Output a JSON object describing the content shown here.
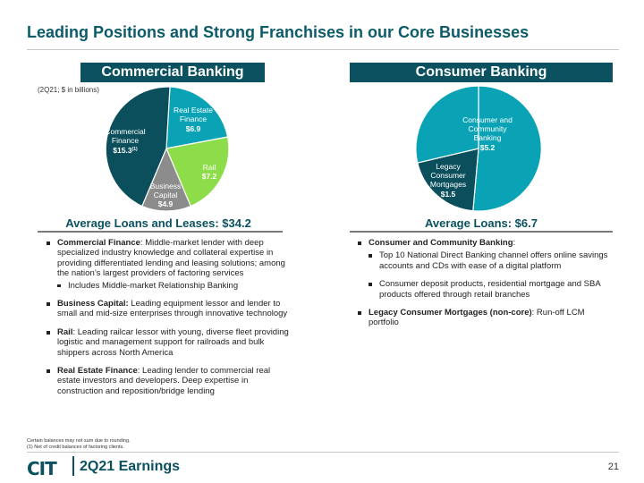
{
  "title": "Leading Positions and Strong Franchises in our Core Businesses",
  "commercial": {
    "header": "Commercial Banking",
    "note": "(2Q21; $ in billions)",
    "pie": [
      {
        "line1": "Commercial",
        "line2": "Finance",
        "value": "$15.3",
        "sup": "(1)",
        "color": "#0b4f5c"
      },
      {
        "line1": "Real Estate",
        "line2": "Finance",
        "value": "$6.9",
        "color": "#0aa3b5"
      },
      {
        "line1": "Rail",
        "line2": "",
        "value": "$7.2",
        "color": "#8ddc4a"
      },
      {
        "line1": "Business",
        "line2": "Capital",
        "value": "$4.9",
        "color": "#8c8c8c"
      }
    ],
    "avg_label": "Average Loans and Leases: $34.2",
    "bullets": [
      {
        "head": "Commercial Finance",
        "text": ": Middle-market lender with deep specialized industry knowledge and collateral expertise in providing differentiated lending and leasing solutions; among the nation’s largest providers of factoring services",
        "sub": "Includes Middle-market Relationship Banking"
      },
      {
        "head": "Business Capital:",
        "text": " Leading equipment lessor and lender to small and mid-size enterprises through innovative technology"
      },
      {
        "head": "Rail",
        "text": ": Leading railcar lessor with young, diverse fleet providing logistic and management support for railroads and bulk shippers across North America"
      },
      {
        "head": "Real Estate Finance",
        "text": ": Leading lender to commercial real estate investors and developers. Deep expertise in construction and reposition/bridge lending"
      }
    ]
  },
  "consumer": {
    "header": "Consumer Banking",
    "pie": [
      {
        "line1": "Consumer and",
        "line2": "Community",
        "line3": "Banking",
        "value": "$5.2",
        "color": "#0aa3b5"
      },
      {
        "line1": "Legacy",
        "line2": "Consumer",
        "line3": "Mortgages",
        "value": "$1.5",
        "color": "#0b4f5c"
      }
    ],
    "avg_label": "Average Loans: $6.7",
    "bullets": [
      {
        "head": "Consumer and Community Banking",
        "text": ":",
        "subs": [
          "Top 10 National Direct Banking channel offers online savings accounts and CDs with ease of a digital platform",
          "Consumer deposit products, residential mortgage and SBA products offered through retail branches"
        ]
      },
      {
        "head": "Legacy Consumer Mortgages (non-core)",
        "text": ": Run-off LCM portfolio"
      }
    ]
  },
  "footnotes": {
    "line1": "Certain balances may not sum due to rounding.",
    "line2": "(1)   Net of credit balances of factoring clients."
  },
  "footer": {
    "logo": "CIT",
    "label": "2Q21 Earnings",
    "page": "21"
  }
}
